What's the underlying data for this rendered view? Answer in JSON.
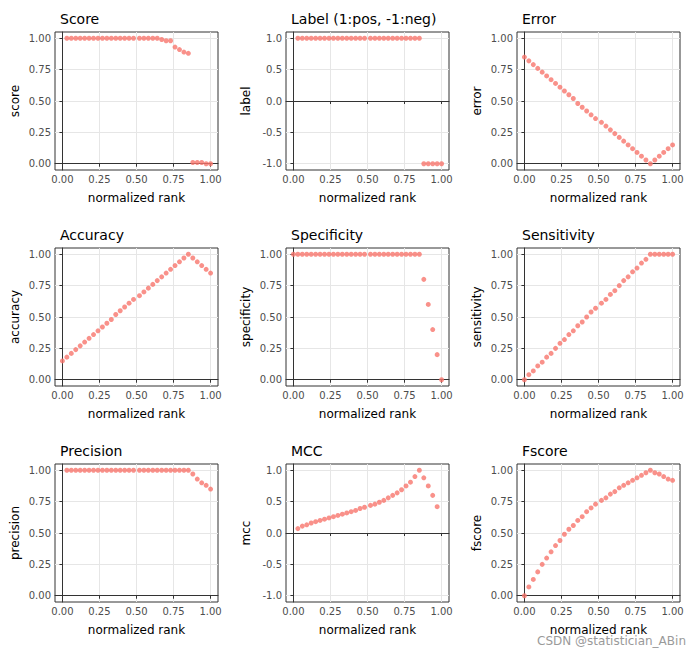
{
  "chart_data": [
    {
      "type": "scatter",
      "title": "Score",
      "x_label": "normalized rank",
      "y_label": "score",
      "color": "#F8766D",
      "marker": "circle",
      "grid": true,
      "x": [
        0.03,
        0.06,
        0.09,
        0.12,
        0.15,
        0.18,
        0.21,
        0.24,
        0.27,
        0.3,
        0.33,
        0.36,
        0.39,
        0.42,
        0.45,
        0.48,
        0.52,
        0.55,
        0.58,
        0.61,
        0.64,
        0.67,
        0.7,
        0.73,
        0.76,
        0.79,
        0.82,
        0.85,
        0.88,
        0.91,
        0.94,
        0.97,
        1
      ],
      "values": [
        1,
        1,
        1,
        1,
        1,
        1,
        1,
        1,
        1,
        1,
        1,
        1,
        1,
        1,
        1,
        1,
        1,
        1,
        1,
        1,
        1,
        0.99,
        0.98,
        0.98,
        0.93,
        0.91,
        0.89,
        0.88,
        0.01,
        0.01,
        0.01,
        0,
        0
      ],
      "xlim": [
        -0.05,
        1.05
      ],
      "xticks": [
        {
          "value": 0,
          "label": "0.00"
        },
        {
          "value": 0.25,
          "label": "0.25"
        },
        {
          "value": 0.5,
          "label": "0.50"
        },
        {
          "value": 0.75,
          "label": "0.75"
        },
        {
          "value": 1,
          "label": "1.00"
        }
      ],
      "ylim": [
        -0.05,
        1.05
      ],
      "yticks": [
        {
          "value": 0,
          "label": "0.00"
        },
        {
          "value": 0.25,
          "label": "0.25"
        },
        {
          "value": 0.5,
          "label": "0.50"
        },
        {
          "value": 0.75,
          "label": "0.75"
        },
        {
          "value": 1,
          "label": "1.00"
        }
      ]
    },
    {
      "type": "scatter",
      "title": "Label (1:pos, -1:neg)",
      "x_label": "normalized rank",
      "y_label": "label",
      "color": "#F8766D",
      "marker": "circle",
      "grid": true,
      "x": [
        0.03,
        0.06,
        0.09,
        0.12,
        0.15,
        0.18,
        0.21,
        0.24,
        0.27,
        0.3,
        0.33,
        0.36,
        0.39,
        0.42,
        0.45,
        0.48,
        0.52,
        0.55,
        0.58,
        0.61,
        0.64,
        0.67,
        0.7,
        0.73,
        0.76,
        0.79,
        0.82,
        0.85,
        0.88,
        0.91,
        0.94,
        0.97,
        1
      ],
      "values": [
        1,
        1,
        1,
        1,
        1,
        1,
        1,
        1,
        1,
        1,
        1,
        1,
        1,
        1,
        1,
        1,
        1,
        1,
        1,
        1,
        1,
        1,
        1,
        1,
        1,
        1,
        1,
        1,
        -1,
        -1,
        -1,
        -1,
        -1
      ],
      "xlim": [
        -0.05,
        1.05
      ],
      "xticks": [
        {
          "value": 0,
          "label": "0.00"
        },
        {
          "value": 0.25,
          "label": "0.25"
        },
        {
          "value": 0.5,
          "label": "0.50"
        },
        {
          "value": 0.75,
          "label": "0.75"
        },
        {
          "value": 1,
          "label": "1.00"
        }
      ],
      "ylim": [
        -1.1,
        1.1
      ],
      "yticks": [
        {
          "value": -1,
          "label": "-1.0"
        },
        {
          "value": -0.5,
          "label": "-0.5"
        },
        {
          "value": 0,
          "label": "0.0"
        },
        {
          "value": 0.5,
          "label": "0.5"
        },
        {
          "value": 1,
          "label": "1.0"
        }
      ]
    },
    {
      "type": "scatter",
      "title": "Error",
      "x_label": "normalized rank",
      "y_label": "error",
      "color": "#F8766D",
      "marker": "circle",
      "grid": true,
      "x": [
        0,
        0.03,
        0.06,
        0.09,
        0.12,
        0.15,
        0.18,
        0.21,
        0.24,
        0.27,
        0.3,
        0.33,
        0.36,
        0.39,
        0.42,
        0.45,
        0.48,
        0.52,
        0.55,
        0.58,
        0.61,
        0.64,
        0.67,
        0.7,
        0.73,
        0.76,
        0.79,
        0.82,
        0.85,
        0.88,
        0.91,
        0.94,
        0.97,
        1
      ],
      "values": [
        0.85,
        0.82,
        0.79,
        0.76,
        0.73,
        0.7,
        0.67,
        0.64,
        0.61,
        0.58,
        0.55,
        0.52,
        0.48,
        0.45,
        0.42,
        0.39,
        0.36,
        0.33,
        0.3,
        0.27,
        0.24,
        0.21,
        0.18,
        0.15,
        0.12,
        0.09,
        0.06,
        0.03,
        0,
        0.03,
        0.06,
        0.09,
        0.12,
        0.15
      ],
      "xlim": [
        -0.05,
        1.05
      ],
      "xticks": [
        {
          "value": 0,
          "label": "0.00"
        },
        {
          "value": 0.25,
          "label": "0.25"
        },
        {
          "value": 0.5,
          "label": "0.50"
        },
        {
          "value": 0.75,
          "label": "0.75"
        },
        {
          "value": 1,
          "label": "1.00"
        }
      ],
      "ylim": [
        -0.05,
        1.05
      ],
      "yticks": [
        {
          "value": 0,
          "label": "0.00"
        },
        {
          "value": 0.25,
          "label": "0.25"
        },
        {
          "value": 0.5,
          "label": "0.50"
        },
        {
          "value": 0.75,
          "label": "0.75"
        },
        {
          "value": 1,
          "label": "1.00"
        }
      ]
    },
    {
      "type": "scatter",
      "title": "Accuracy",
      "x_label": "normalized rank",
      "y_label": "accuracy",
      "color": "#F8766D",
      "marker": "circle",
      "grid": true,
      "x": [
        0,
        0.03,
        0.06,
        0.09,
        0.12,
        0.15,
        0.18,
        0.21,
        0.24,
        0.27,
        0.3,
        0.33,
        0.36,
        0.39,
        0.42,
        0.45,
        0.48,
        0.52,
        0.55,
        0.58,
        0.61,
        0.64,
        0.67,
        0.7,
        0.73,
        0.76,
        0.79,
        0.82,
        0.85,
        0.88,
        0.91,
        0.94,
        0.97,
        1
      ],
      "values": [
        0.15,
        0.18,
        0.21,
        0.24,
        0.27,
        0.3,
        0.33,
        0.36,
        0.39,
        0.42,
        0.45,
        0.48,
        0.52,
        0.55,
        0.58,
        0.61,
        0.64,
        0.67,
        0.7,
        0.73,
        0.76,
        0.79,
        0.82,
        0.85,
        0.88,
        0.91,
        0.94,
        0.97,
        1,
        0.97,
        0.94,
        0.91,
        0.88,
        0.85
      ],
      "xlim": [
        -0.05,
        1.05
      ],
      "xticks": [
        {
          "value": 0,
          "label": "0.00"
        },
        {
          "value": 0.25,
          "label": "0.25"
        },
        {
          "value": 0.5,
          "label": "0.50"
        },
        {
          "value": 0.75,
          "label": "0.75"
        },
        {
          "value": 1,
          "label": "1.00"
        }
      ],
      "ylim": [
        -0.05,
        1.05
      ],
      "yticks": [
        {
          "value": 0,
          "label": "0.00"
        },
        {
          "value": 0.25,
          "label": "0.25"
        },
        {
          "value": 0.5,
          "label": "0.50"
        },
        {
          "value": 0.75,
          "label": "0.75"
        },
        {
          "value": 1,
          "label": "1.00"
        }
      ]
    },
    {
      "type": "scatter",
      "title": "Specificity",
      "x_label": "normalized rank",
      "y_label": "specificity",
      "color": "#F8766D",
      "marker": "circle",
      "grid": true,
      "x": [
        0,
        0.03,
        0.06,
        0.09,
        0.12,
        0.15,
        0.18,
        0.21,
        0.24,
        0.27,
        0.3,
        0.33,
        0.36,
        0.39,
        0.42,
        0.45,
        0.48,
        0.52,
        0.55,
        0.58,
        0.61,
        0.64,
        0.67,
        0.7,
        0.73,
        0.76,
        0.79,
        0.82,
        0.85,
        0.88,
        0.91,
        0.94,
        0.97,
        1
      ],
      "values": [
        1,
        1,
        1,
        1,
        1,
        1,
        1,
        1,
        1,
        1,
        1,
        1,
        1,
        1,
        1,
        1,
        1,
        1,
        1,
        1,
        1,
        1,
        1,
        1,
        1,
        1,
        1,
        1,
        1,
        0.8,
        0.6,
        0.4,
        0.2,
        0
      ],
      "xlim": [
        -0.05,
        1.05
      ],
      "xticks": [
        {
          "value": 0,
          "label": "0.00"
        },
        {
          "value": 0.25,
          "label": "0.25"
        },
        {
          "value": 0.5,
          "label": "0.50"
        },
        {
          "value": 0.75,
          "label": "0.75"
        },
        {
          "value": 1,
          "label": "1.00"
        }
      ],
      "ylim": [
        -0.05,
        1.05
      ],
      "yticks": [
        {
          "value": 0,
          "label": "0.00"
        },
        {
          "value": 0.25,
          "label": "0.25"
        },
        {
          "value": 0.5,
          "label": "0.50"
        },
        {
          "value": 0.75,
          "label": "0.75"
        },
        {
          "value": 1,
          "label": "1.00"
        }
      ]
    },
    {
      "type": "scatter",
      "title": "Sensitivity",
      "x_label": "normalized rank",
      "y_label": "sensitivity",
      "color": "#F8766D",
      "marker": "circle",
      "grid": true,
      "x": [
        0,
        0.03,
        0.06,
        0.09,
        0.12,
        0.15,
        0.18,
        0.21,
        0.24,
        0.27,
        0.3,
        0.33,
        0.36,
        0.39,
        0.42,
        0.45,
        0.48,
        0.52,
        0.55,
        0.58,
        0.61,
        0.64,
        0.67,
        0.7,
        0.73,
        0.76,
        0.79,
        0.82,
        0.85,
        0.88,
        0.91,
        0.94,
        0.97,
        1
      ],
      "values": [
        0,
        0.04,
        0.07,
        0.11,
        0.14,
        0.18,
        0.21,
        0.25,
        0.29,
        0.32,
        0.36,
        0.39,
        0.43,
        0.46,
        0.5,
        0.54,
        0.57,
        0.61,
        0.64,
        0.68,
        0.71,
        0.75,
        0.79,
        0.82,
        0.86,
        0.89,
        0.93,
        0.96,
        1,
        1,
        1,
        1,
        1,
        1
      ],
      "xlim": [
        -0.05,
        1.05
      ],
      "xticks": [
        {
          "value": 0,
          "label": "0.00"
        },
        {
          "value": 0.25,
          "label": "0.25"
        },
        {
          "value": 0.5,
          "label": "0.50"
        },
        {
          "value": 0.75,
          "label": "0.75"
        },
        {
          "value": 1,
          "label": "1.00"
        }
      ],
      "ylim": [
        -0.05,
        1.05
      ],
      "yticks": [
        {
          "value": 0,
          "label": "0.00"
        },
        {
          "value": 0.25,
          "label": "0.25"
        },
        {
          "value": 0.5,
          "label": "0.50"
        },
        {
          "value": 0.75,
          "label": "0.75"
        },
        {
          "value": 1,
          "label": "1.00"
        }
      ]
    },
    {
      "type": "scatter",
      "title": "Precision",
      "x_label": "normalized rank",
      "y_label": "precision",
      "color": "#F8766D",
      "marker": "circle",
      "grid": true,
      "x": [
        0.03,
        0.06,
        0.09,
        0.12,
        0.15,
        0.18,
        0.21,
        0.24,
        0.27,
        0.3,
        0.33,
        0.36,
        0.39,
        0.42,
        0.45,
        0.48,
        0.52,
        0.55,
        0.58,
        0.61,
        0.64,
        0.67,
        0.7,
        0.73,
        0.76,
        0.79,
        0.82,
        0.85,
        0.88,
        0.91,
        0.94,
        0.97,
        1
      ],
      "values": [
        1,
        1,
        1,
        1,
        1,
        1,
        1,
        1,
        1,
        1,
        1,
        1,
        1,
        1,
        1,
        1,
        1,
        1,
        1,
        1,
        1,
        1,
        1,
        1,
        1,
        1,
        1,
        1,
        0.97,
        0.93,
        0.9,
        0.88,
        0.85
      ],
      "xlim": [
        -0.05,
        1.05
      ],
      "xticks": [
        {
          "value": 0,
          "label": "0.00"
        },
        {
          "value": 0.25,
          "label": "0.25"
        },
        {
          "value": 0.5,
          "label": "0.50"
        },
        {
          "value": 0.75,
          "label": "0.75"
        },
        {
          "value": 1,
          "label": "1.00"
        }
      ],
      "ylim": [
        -0.05,
        1.05
      ],
      "yticks": [
        {
          "value": 0,
          "label": "0.00"
        },
        {
          "value": 0.25,
          "label": "0.25"
        },
        {
          "value": 0.5,
          "label": "0.50"
        },
        {
          "value": 0.75,
          "label": "0.75"
        },
        {
          "value": 1,
          "label": "1.00"
        }
      ]
    },
    {
      "type": "scatter",
      "title": "MCC",
      "x_label": "normalized rank",
      "y_label": "mcc",
      "color": "#F8766D",
      "marker": "circle",
      "grid": true,
      "x": [
        0.03,
        0.06,
        0.09,
        0.12,
        0.15,
        0.18,
        0.21,
        0.24,
        0.27,
        0.3,
        0.33,
        0.36,
        0.39,
        0.42,
        0.45,
        0.48,
        0.52,
        0.55,
        0.58,
        0.61,
        0.64,
        0.67,
        0.7,
        0.73,
        0.76,
        0.79,
        0.82,
        0.85,
        0.88,
        0.91,
        0.94,
        0.97
      ],
      "values": [
        0.07,
        0.11,
        0.13,
        0.16,
        0.18,
        0.2,
        0.22,
        0.24,
        0.26,
        0.28,
        0.3,
        0.32,
        0.34,
        0.36,
        0.39,
        0.41,
        0.44,
        0.46,
        0.49,
        0.52,
        0.56,
        0.6,
        0.64,
        0.69,
        0.75,
        0.81,
        0.9,
        1,
        0.88,
        0.75,
        0.6,
        0.42
      ],
      "xlim": [
        -0.05,
        1.05
      ],
      "xticks": [
        {
          "value": 0,
          "label": "0.00"
        },
        {
          "value": 0.25,
          "label": "0.25"
        },
        {
          "value": 0.5,
          "label": "0.50"
        },
        {
          "value": 0.75,
          "label": "0.75"
        },
        {
          "value": 1,
          "label": "1.00"
        }
      ],
      "ylim": [
        -1.1,
        1.1
      ],
      "yticks": [
        {
          "value": -1,
          "label": "-1.0"
        },
        {
          "value": -0.5,
          "label": "-0.5"
        },
        {
          "value": 0,
          "label": "0.0"
        },
        {
          "value": 0.5,
          "label": "0.5"
        },
        {
          "value": 1,
          "label": "1.0"
        }
      ]
    },
    {
      "type": "scatter",
      "title": "Fscore",
      "x_label": "normalized rank",
      "y_label": "fscore",
      "color": "#F8766D",
      "marker": "circle",
      "grid": true,
      "x": [
        0,
        0.03,
        0.06,
        0.09,
        0.12,
        0.15,
        0.18,
        0.21,
        0.24,
        0.27,
        0.3,
        0.33,
        0.36,
        0.39,
        0.42,
        0.45,
        0.48,
        0.52,
        0.55,
        0.58,
        0.61,
        0.64,
        0.67,
        0.7,
        0.73,
        0.76,
        0.79,
        0.82,
        0.85,
        0.88,
        0.91,
        0.94,
        0.97,
        1
      ],
      "values": [
        0,
        0.07,
        0.13,
        0.19,
        0.25,
        0.3,
        0.35,
        0.4,
        0.44,
        0.49,
        0.53,
        0.56,
        0.6,
        0.63,
        0.67,
        0.7,
        0.73,
        0.76,
        0.78,
        0.81,
        0.83,
        0.86,
        0.88,
        0.9,
        0.92,
        0.94,
        0.96,
        0.98,
        1,
        0.98,
        0.97,
        0.95,
        0.93,
        0.92
      ],
      "xlim": [
        -0.05,
        1.05
      ],
      "xticks": [
        {
          "value": 0,
          "label": "0.00"
        },
        {
          "value": 0.25,
          "label": "0.25"
        },
        {
          "value": 0.5,
          "label": "0.50"
        },
        {
          "value": 0.75,
          "label": "0.75"
        },
        {
          "value": 1,
          "label": "1.00"
        }
      ],
      "ylim": [
        -0.05,
        1.05
      ],
      "yticks": [
        {
          "value": 0,
          "label": "0.00"
        },
        {
          "value": 0.25,
          "label": "0.25"
        },
        {
          "value": 0.5,
          "label": "0.50"
        },
        {
          "value": 0.75,
          "label": "0.75"
        },
        {
          "value": 1,
          "label": "1.00"
        }
      ]
    }
  ],
  "watermark": "CSDN @statistician_ABin"
}
